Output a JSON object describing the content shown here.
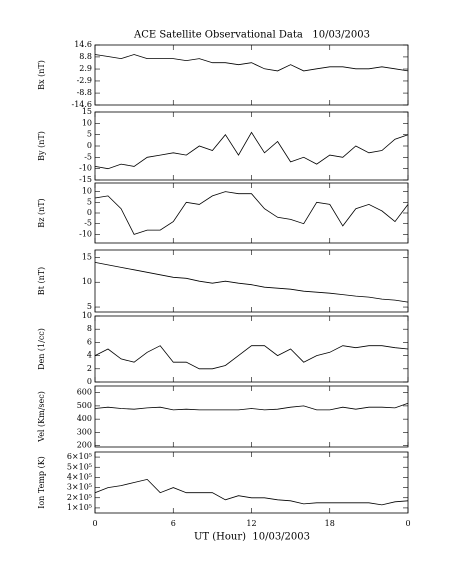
{
  "chart_data": [
    {
      "type": "line",
      "title": "ACE Satellite Observational Data   10/03/2003",
      "ylabel": "Bx (nT)",
      "color": "#000000",
      "x": [
        0,
        1,
        2,
        3,
        4,
        5,
        6,
        7,
        8,
        9,
        10,
        11,
        12,
        13,
        14,
        15,
        16,
        17,
        18,
        19,
        20,
        21,
        22,
        23,
        24
      ],
      "values": [
        10,
        9,
        8,
        10,
        8,
        8,
        8,
        7,
        8,
        6,
        6,
        5,
        6,
        3,
        2,
        5,
        2,
        3,
        4,
        4,
        3,
        3,
        4,
        3,
        2
      ],
      "xlim": [
        0,
        24
      ],
      "ylim": [
        -14.6,
        14.6
      ],
      "yticks": [
        14.6,
        8.8,
        2.9,
        -2.9,
        -8.8,
        -14.6
      ]
    },
    {
      "type": "line",
      "ylabel": "By (nT)",
      "color": "#000000",
      "x": [
        0,
        1,
        2,
        3,
        4,
        5,
        6,
        7,
        8,
        9,
        10,
        11,
        12,
        13,
        14,
        15,
        16,
        17,
        18,
        19,
        20,
        21,
        22,
        23,
        24
      ],
      "values": [
        -9,
        -10,
        -8,
        -9,
        -5,
        -4,
        -3,
        -4,
        0,
        -2,
        5,
        -4,
        6,
        -3,
        2,
        -7,
        -5,
        -8,
        -4,
        -5,
        0,
        -3,
        -2,
        3,
        5
      ],
      "xlim": [
        0,
        24
      ],
      "ylim": [
        -15,
        15
      ],
      "yticks": [
        15,
        10,
        5,
        0,
        -5,
        -10,
        -15
      ]
    },
    {
      "type": "line",
      "ylabel": "Bz (nT)",
      "color": "#000000",
      "x": [
        0,
        1,
        2,
        3,
        4,
        5,
        6,
        7,
        8,
        9,
        10,
        11,
        12,
        13,
        14,
        15,
        16,
        17,
        18,
        19,
        20,
        21,
        22,
        23,
        24
      ],
      "values": [
        7,
        8,
        2,
        -10,
        -8,
        -8,
        -4,
        5,
        4,
        8,
        10,
        9,
        9,
        2,
        -2,
        -3,
        -5,
        5,
        4,
        -6,
        2,
        4,
        1,
        -4,
        4
      ],
      "xlim": [
        0,
        24
      ],
      "ylim": [
        -14,
        14
      ],
      "yticks": [
        10,
        5,
        0,
        -5,
        -10
      ]
    },
    {
      "type": "line",
      "ylabel": "Bt (nT)",
      "color": "#000000",
      "x": [
        0,
        1,
        2,
        3,
        4,
        5,
        6,
        7,
        8,
        9,
        10,
        11,
        12,
        13,
        14,
        15,
        16,
        17,
        18,
        19,
        20,
        21,
        22,
        23,
        24
      ],
      "values": [
        14,
        13.5,
        13,
        12.5,
        12,
        11.5,
        11,
        10.8,
        10.2,
        9.8,
        10.2,
        9.8,
        9.5,
        9,
        8.8,
        8.6,
        8.2,
        8,
        7.8,
        7.5,
        7.2,
        7,
        6.6,
        6.4,
        6
      ],
      "xlim": [
        0,
        24
      ],
      "ylim": [
        4,
        16.5
      ],
      "yticks": [
        15,
        10,
        5
      ]
    },
    {
      "type": "line",
      "ylabel": "Den (1/cc)",
      "color": "#000000",
      "x": [
        0,
        1,
        2,
        3,
        4,
        5,
        6,
        7,
        8,
        9,
        10,
        11,
        12,
        13,
        14,
        15,
        16,
        17,
        18,
        19,
        20,
        21,
        22,
        23,
        24
      ],
      "values": [
        4,
        5,
        3.5,
        3,
        4.5,
        5.5,
        3,
        3,
        2,
        2,
        2.5,
        4,
        5.5,
        5.5,
        4,
        5,
        3,
        4,
        4.5,
        5.5,
        5.2,
        5.5,
        5.5,
        5.2,
        5
      ],
      "xlim": [
        0,
        24
      ],
      "ylim": [
        0,
        10
      ],
      "yticks": [
        0,
        2,
        4,
        6,
        8,
        10
      ]
    },
    {
      "type": "line",
      "ylabel": "Vel (Km/sec)",
      "color": "#000000",
      "x": [
        0,
        1,
        2,
        3,
        4,
        5,
        6,
        7,
        8,
        9,
        10,
        11,
        12,
        13,
        14,
        15,
        16,
        17,
        18,
        19,
        20,
        21,
        22,
        23,
        24
      ],
      "values": [
        480,
        490,
        480,
        475,
        485,
        490,
        470,
        475,
        470,
        470,
        470,
        470,
        480,
        470,
        475,
        490,
        500,
        470,
        470,
        490,
        475,
        490,
        490,
        485,
        520
      ],
      "xlim": [
        0,
        24
      ],
      "ylim": [
        190,
        650
      ],
      "yticks": [
        200,
        300,
        400,
        500,
        600
      ]
    },
    {
      "type": "line",
      "ylabel": "Ion Temp (K)",
      "xlabel": "UT (Hour)  10/03/2003",
      "color": "#000000",
      "x": [
        0,
        1,
        2,
        3,
        4,
        5,
        6,
        7,
        8,
        9,
        10,
        11,
        12,
        13,
        14,
        15,
        16,
        17,
        18,
        19,
        20,
        21,
        22,
        23,
        24
      ],
      "values": [
        250000,
        300000,
        320000,
        350000,
        380000,
        250000,
        300000,
        250000,
        250000,
        250000,
        180000,
        220000,
        200000,
        200000,
        180000,
        170000,
        140000,
        150000,
        150000,
        150000,
        150000,
        150000,
        130000,
        160000,
        170000
      ],
      "xlim": [
        0,
        24
      ],
      "ylim": [
        50000,
        650000
      ],
      "yticks": [
        {
          "value": 100000,
          "label": "1×10⁵"
        },
        {
          "value": 200000,
          "label": "2×10⁵"
        },
        {
          "value": 300000,
          "label": "3×10⁵"
        },
        {
          "value": 400000,
          "label": "4×10⁵"
        },
        {
          "value": 500000,
          "label": "5×10⁵"
        },
        {
          "value": 600000,
          "label": "6×10⁵"
        }
      ],
      "xticks": [
        0,
        6,
        12,
        18,
        {
          "value": 24,
          "label": "0"
        }
      ]
    }
  ]
}
